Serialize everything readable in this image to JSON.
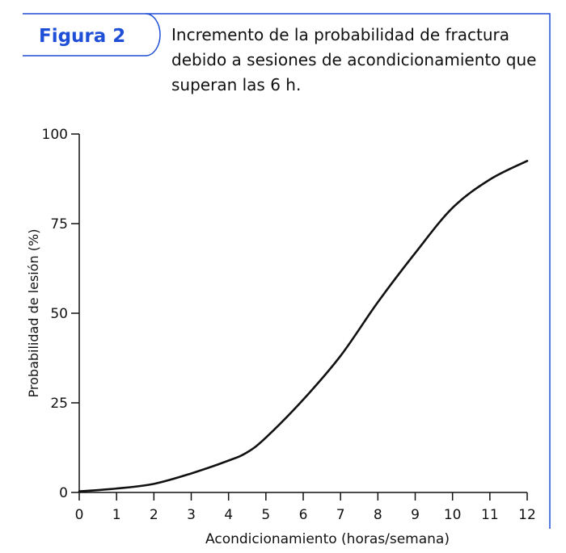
{
  "figure": {
    "label": "Figura 2",
    "caption": "Incremento de la probabilidad de fractura debido a sesiones de acondicionamiento que superan las 6 h.",
    "accent_color": "#1f4fd6"
  },
  "chart_data": {
    "type": "line",
    "title": "",
    "xlabel": "Acondicionamiento (horas/semana)",
    "ylabel": "Probabilidad de lesión (%)",
    "xlim": [
      0,
      12
    ],
    "ylim": [
      0,
      100
    ],
    "xticks": [
      0,
      1,
      2,
      3,
      4,
      5,
      6,
      7,
      8,
      9,
      10,
      11,
      12
    ],
    "yticks": [
      0,
      25,
      50,
      75,
      100
    ],
    "grid": false,
    "line_color": "#111111",
    "series": [
      {
        "x": [
          0,
          1,
          2,
          3,
          4,
          4.5,
          5,
          6,
          7,
          8,
          9,
          10,
          11,
          12
        ],
        "y": [
          0.3,
          1.1,
          2.4,
          5.3,
          8.9,
          11.2,
          15.3,
          25.9,
          38.1,
          53.1,
          66.8,
          79.4,
          87.3,
          92.5
        ]
      }
    ]
  }
}
